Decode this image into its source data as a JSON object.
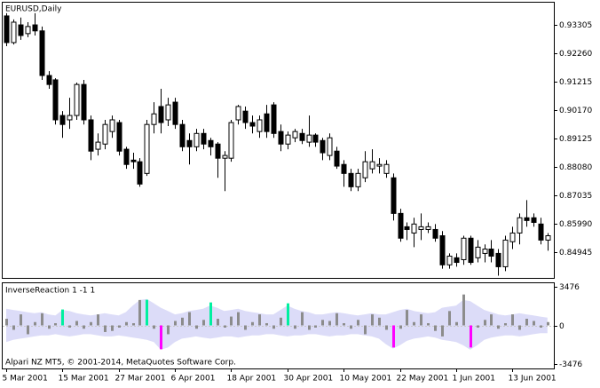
{
  "chart_data": [
    {
      "type": "candlestick",
      "title": "EURUSD,Daily",
      "categories": [
        "5 Mar 2001",
        null,
        null,
        null,
        null,
        null,
        null,
        null,
        "15 Mar 2001",
        null,
        null,
        null,
        null,
        null,
        null,
        null,
        "27 Mar 2001",
        null,
        null,
        null,
        null,
        null,
        null,
        null,
        "6 Apr 2001",
        null,
        null,
        null,
        null,
        null,
        null,
        null,
        "18 Apr 2001",
        null,
        null,
        null,
        null,
        null,
        null,
        null,
        "30 Apr 2001",
        null,
        null,
        null,
        null,
        null,
        null,
        null,
        "10 May 2001",
        null,
        null,
        null,
        null,
        null,
        null,
        null,
        "22 May 2001",
        null,
        null,
        null,
        null,
        null,
        null,
        null,
        "1 Jun 2001",
        null,
        null,
        null,
        null,
        null,
        null,
        null,
        "13 Jun 2001",
        null,
        null,
        null,
        null,
        null
      ],
      "open": [
        0.9363,
        0.9265,
        0.933,
        0.9298,
        0.933,
        0.9308,
        0.9144,
        0.9128,
        0.8997,
        0.8981,
        0.8997,
        0.9111,
        0.8981,
        0.8873,
        0.8892,
        0.8938,
        0.8971,
        0.8873,
        0.8833,
        0.8827,
        0.8784,
        0.8964,
        0.903,
        0.8981,
        0.9046,
        0.8964,
        0.8905,
        0.8882,
        0.8931,
        0.8905,
        0.8892,
        0.884,
        0.884,
        0.8981,
        0.9013,
        0.8971,
        0.8938,
        0.9003,
        0.9036,
        0.8938,
        0.8892,
        0.8915,
        0.8931,
        0.8899,
        0.8925,
        0.8905,
        0.885,
        0.8866,
        0.8817,
        0.8784,
        0.8735,
        0.8768,
        0.8801,
        0.8811,
        0.8784,
        0.8768,
        0.8637,
        0.8588,
        0.8565,
        0.8578,
        0.8578,
        0.8578,
        0.8555,
        0.8448,
        0.8474,
        0.8467,
        0.8546,
        0.8474,
        0.849,
        0.8506,
        0.849,
        0.8441,
        0.8533,
        0.8565,
        0.8621,
        0.8621,
        0.8598,
        0.8539
      ],
      "high": [
        0.9373,
        0.935,
        0.9357,
        0.934,
        0.9373,
        0.9324,
        0.916,
        0.9134,
        0.9013,
        0.9062,
        0.9118,
        0.9128,
        0.8997,
        0.8931,
        0.8981,
        0.8997,
        0.8981,
        0.8882,
        0.886,
        0.884,
        0.8981,
        0.9046,
        0.9095,
        0.9062,
        0.9062,
        0.8981,
        0.8931,
        0.8948,
        0.8948,
        0.8915,
        0.8899,
        0.8866,
        0.8981,
        0.9036,
        0.903,
        0.8997,
        0.8997,
        0.9036,
        0.9046,
        0.8964,
        0.8938,
        0.8948,
        0.8948,
        0.8997,
        0.8931,
        0.8915,
        0.8931,
        0.8882,
        0.8833,
        0.8801,
        0.8801,
        0.8866,
        0.8873,
        0.884,
        0.8833,
        0.8784,
        0.8654,
        0.8604,
        0.8621,
        0.8637,
        0.8604,
        0.8598,
        0.8572,
        0.849,
        0.849,
        0.8555,
        0.8555,
        0.8539,
        0.8523,
        0.8539,
        0.8506,
        0.8555,
        0.8588,
        0.8637,
        0.8686,
        0.8637,
        0.8621,
        0.8565
      ],
      "low": [
        0.9252,
        0.9258,
        0.9275,
        0.9285,
        0.9291,
        0.9128,
        0.9095,
        0.8964,
        0.8915,
        0.8948,
        0.8981,
        0.8964,
        0.8833,
        0.885,
        0.8873,
        0.8915,
        0.885,
        0.8801,
        0.8801,
        0.8735,
        0.8775,
        0.8931,
        0.8931,
        0.8958,
        0.8948,
        0.8866,
        0.8817,
        0.8866,
        0.8873,
        0.885,
        0.8768,
        0.8719,
        0.8827,
        0.8964,
        0.8948,
        0.8931,
        0.8915,
        0.8915,
        0.8915,
        0.8866,
        0.8873,
        0.8899,
        0.8892,
        0.8882,
        0.8882,
        0.8833,
        0.8833,
        0.8801,
        0.8735,
        0.8719,
        0.8719,
        0.8752,
        0.8784,
        0.8784,
        0.8768,
        0.8611,
        0.8533,
        0.8539,
        0.8513,
        0.8539,
        0.8565,
        0.8533,
        0.8434,
        0.8434,
        0.8441,
        0.8448,
        0.8448,
        0.8457,
        0.8457,
        0.8457,
        0.8408,
        0.8425,
        0.8506,
        0.8523,
        0.8588,
        0.8588,
        0.8523,
        0.85
      ],
      "close": [
        0.9265,
        0.934,
        0.9291,
        0.9324,
        0.9308,
        0.9144,
        0.9111,
        0.8981,
        0.8964,
        0.8997,
        0.9111,
        0.8981,
        0.8866,
        0.8899,
        0.8964,
        0.8981,
        0.8866,
        0.8817,
        0.8827,
        0.8745,
        0.8964,
        0.9003,
        0.8971,
        0.9036,
        0.8964,
        0.8882,
        0.8882,
        0.8931,
        0.8892,
        0.8882,
        0.884,
        0.885,
        0.8971,
        0.903,
        0.8971,
        0.8958,
        0.8981,
        0.8938,
        0.8931,
        0.8892,
        0.8925,
        0.8938,
        0.8905,
        0.8925,
        0.8899,
        0.886,
        0.8915,
        0.8811,
        0.8784,
        0.8735,
        0.8784,
        0.8827,
        0.8827,
        0.8817,
        0.8817,
        0.8637,
        0.8546,
        0.8578,
        0.8598,
        0.8588,
        0.8588,
        0.8546,
        0.8448,
        0.848,
        0.8457,
        0.8546,
        0.8457,
        0.8513,
        0.8506,
        0.848,
        0.8441,
        0.8539,
        0.8565,
        0.8621,
        0.8611,
        0.8604,
        0.8539,
        0.8555
      ],
      "up_color": "#ffffff",
      "down_color": "#000000",
      "line_color": "#000000",
      "ylim": [
        0.84,
        0.9415
      ],
      "yticks": [
        0.93305,
        {
          "value": 0.9226,
          "label": "0.92260"
        },
        0.91215,
        {
          "value": 0.9017,
          "label": "0.90170"
        },
        0.89125,
        {
          "value": 0.8808,
          "label": "0.88080"
        },
        0.87035,
        {
          "value": 0.8599,
          "label": "0.85990"
        },
        0.84945
      ]
    },
    {
      "type": "histogram-band",
      "title": "InverseReaction 1 -1 1",
      "annotation": "Alpari NZ MT5, © 2001-2014, MetaQuotes Software Corp.",
      "band_color": "#dcdcf8",
      "band_upper": [
        1500,
        1400,
        1300,
        1200,
        1100,
        1200,
        1000,
        900,
        1400,
        1300,
        1100,
        1000,
        900,
        1000,
        1100,
        1000,
        900,
        1200,
        1800,
        2300,
        2400,
        2000,
        1600,
        1300,
        1000,
        1100,
        1300,
        1400,
        1500,
        1800,
        1600,
        1300,
        1400,
        1500,
        1300,
        1200,
        1100,
        1000,
        1000,
        1400,
        1800,
        1500,
        1300,
        1200,
        1000,
        1000,
        1100,
        1200,
        1100,
        1000,
        900,
        1000,
        1100,
        1000,
        1000,
        1200,
        1400,
        1500,
        1300,
        1200,
        1100,
        1200,
        1600,
        1700,
        1800,
        2300,
        2200,
        1800,
        1400,
        1200,
        1000,
        900,
        1000,
        1100,
        1000,
        900,
        800,
        700
      ],
      "band_lower": [
        -1500,
        -1300,
        -1200,
        -1100,
        -1000,
        -900,
        -900,
        -800,
        -900,
        -1000,
        -900,
        -800,
        -800,
        -900,
        -1000,
        -1000,
        -900,
        -1000,
        -1100,
        -1200,
        -1300,
        -1500,
        -2200,
        -2000,
        -1500,
        -1200,
        -1100,
        -1000,
        -1100,
        -1200,
        -1100,
        -1000,
        -1000,
        -1100,
        -1000,
        -900,
        -900,
        -800,
        -800,
        -900,
        -1000,
        -900,
        -900,
        -800,
        -800,
        -900,
        -1000,
        -900,
        -900,
        -800,
        -800,
        -900,
        -1000,
        -1200,
        -1700,
        -2100,
        -1800,
        -1400,
        -1200,
        -1100,
        -1000,
        -1100,
        -1300,
        -1400,
        -1500,
        -1800,
        -2200,
        -1800,
        -1300,
        -1100,
        -1000,
        -900,
        -900,
        -1000,
        -900,
        -800,
        -700,
        -700
      ],
      "series": [
        {
          "color": "#8c8c8c",
          "values": [
            600,
            -400,
            1000,
            -800,
            300,
            1100,
            -300,
            200,
            null,
            -200,
            400,
            -300,
            300,
            1000,
            -600,
            -500,
            -200,
            300,
            200,
            2300,
            null,
            -300,
            null,
            -800,
            400,
            700,
            1200,
            -300,
            500,
            null,
            600,
            -200,
            800,
            1200,
            -400,
            300,
            1000,
            200,
            -300,
            700,
            null,
            -300,
            1200,
            -400,
            -200,
            500,
            400,
            1100,
            200,
            -300,
            500,
            -800,
            1000,
            700,
            -400,
            null,
            -300,
            1400,
            300,
            1000,
            200,
            -500,
            -1000,
            1300,
            300,
            2800,
            null,
            -200,
            500,
            1000,
            -300,
            200,
            1000,
            -400,
            600,
            400,
            -200,
            300
          ]
        },
        {
          "color": "#00f0a0",
          "values": [
            null,
            null,
            null,
            null,
            null,
            null,
            null,
            null,
            1440,
            null,
            null,
            null,
            null,
            null,
            null,
            null,
            null,
            null,
            null,
            null,
            2320,
            null,
            null,
            null,
            null,
            null,
            null,
            null,
            null,
            2080,
            null,
            null,
            null,
            null,
            null,
            null,
            null,
            null,
            null,
            null,
            2000,
            null,
            null,
            null,
            null,
            null,
            null,
            null,
            null,
            null,
            null,
            null,
            null,
            null,
            null,
            null,
            null,
            null,
            null,
            null,
            null,
            null,
            null,
            null,
            null,
            null,
            null,
            null,
            null,
            null,
            null,
            null,
            null,
            null,
            null,
            null,
            null,
            null
          ]
        },
        {
          "color": "#ff00ff",
          "values": [
            null,
            null,
            null,
            null,
            null,
            null,
            null,
            null,
            null,
            null,
            null,
            null,
            null,
            null,
            null,
            null,
            null,
            null,
            null,
            null,
            null,
            null,
            -2160,
            null,
            null,
            null,
            null,
            null,
            null,
            null,
            null,
            null,
            null,
            null,
            null,
            null,
            null,
            null,
            null,
            null,
            null,
            null,
            null,
            null,
            null,
            null,
            null,
            null,
            null,
            null,
            null,
            null,
            null,
            null,
            null,
            -2000,
            null,
            null,
            null,
            null,
            null,
            null,
            null,
            null,
            null,
            null,
            -2000,
            null,
            null,
            null,
            null,
            null,
            null,
            null,
            null,
            null,
            null,
            null
          ]
        }
      ],
      "ylim": [
        -3900,
        3900
      ],
      "yticks": [
        3476,
        0,
        -3476
      ]
    }
  ]
}
